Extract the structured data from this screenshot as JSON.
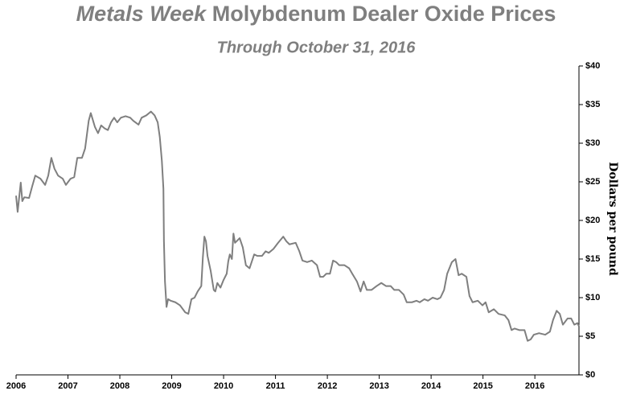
{
  "chart_data": {
    "type": "line",
    "title": {
      "publication": "Metals Week",
      "text": "Molybdenum Dealer Oxide Prices"
    },
    "subtitle": "Through October 31, 2016",
    "y_axis_label": "Dollars per pound",
    "color": "#7f7f7f",
    "xlim": [
      2006,
      2016.85
    ],
    "xticks": [
      2006,
      2007,
      2008,
      2009,
      2010,
      2011,
      2012,
      2013,
      2014,
      2015,
      2016
    ],
    "ylim": [
      0,
      40
    ],
    "yticks": [
      {
        "value": 0,
        "label": "$0"
      },
      {
        "value": 5,
        "label": "$5"
      },
      {
        "value": 10,
        "label": "$10"
      },
      {
        "value": 15,
        "label": "$15"
      },
      {
        "value": 20,
        "label": "$20"
      },
      {
        "value": 25,
        "label": "$25"
      },
      {
        "value": 30,
        "label": "$30"
      },
      {
        "value": 35,
        "label": "$35"
      },
      {
        "value": 40,
        "label": "$40"
      }
    ],
    "x": [
      2006.0,
      2006.03,
      2006.09,
      2006.12,
      2006.16,
      2006.25,
      2006.31,
      2006.37,
      2006.47,
      2006.56,
      2006.62,
      2006.68,
      2006.74,
      2006.81,
      2006.9,
      2006.96,
      2007.05,
      2007.12,
      2007.18,
      2007.27,
      2007.33,
      2007.4,
      2007.44,
      2007.52,
      2007.58,
      2007.64,
      2007.71,
      2007.77,
      2007.83,
      2007.89,
      2007.95,
      2008.02,
      2008.11,
      2008.2,
      2008.26,
      2008.36,
      2008.42,
      2008.51,
      2008.6,
      2008.67,
      2008.73,
      2008.77,
      2008.81,
      2008.84,
      2008.85,
      2008.87,
      2008.9,
      2008.93,
      2008.98,
      2009.07,
      2009.16,
      2009.26,
      2009.32,
      2009.38,
      2009.44,
      2009.5,
      2009.57,
      2009.6,
      2009.63,
      2009.66,
      2009.69,
      2009.75,
      2009.81,
      2009.84,
      2009.88,
      2009.94,
      2010.0,
      2010.06,
      2010.09,
      2010.12,
      2010.16,
      2010.19,
      2010.22,
      2010.25,
      2010.31,
      2010.37,
      2010.43,
      2010.5,
      2010.59,
      2010.65,
      2010.74,
      2010.81,
      2010.87,
      2010.96,
      2011.05,
      2011.15,
      2011.21,
      2011.27,
      2011.39,
      2011.46,
      2011.52,
      2011.61,
      2011.7,
      2011.8,
      2011.86,
      2011.92,
      2011.98,
      2012.05,
      2012.11,
      2012.17,
      2012.23,
      2012.33,
      2012.42,
      2012.48,
      2012.57,
      2012.64,
      2012.7,
      2012.76,
      2012.85,
      2012.95,
      2013.04,
      2013.13,
      2013.22,
      2013.29,
      2013.38,
      2013.47,
      2013.53,
      2013.63,
      2013.72,
      2013.78,
      2013.87,
      2013.94,
      2014.03,
      2014.12,
      2014.18,
      2014.25,
      2014.31,
      2014.4,
      2014.47,
      2014.53,
      2014.59,
      2014.68,
      2014.74,
      2014.8,
      2014.9,
      2014.99,
      2015.05,
      2015.11,
      2015.21,
      2015.3,
      2015.42,
      2015.49,
      2015.55,
      2015.61,
      2015.7,
      2015.8,
      2015.86,
      2015.92,
      2015.98,
      2016.08,
      2016.2,
      2016.29,
      2016.35,
      2016.42,
      2016.48,
      2016.54,
      2016.63,
      2016.7,
      2016.76,
      2016.82,
      2016.85
    ],
    "values": [
      23.2,
      21.1,
      24.9,
      22.5,
      23.0,
      22.9,
      24.4,
      25.8,
      25.4,
      24.6,
      25.8,
      28.1,
      26.7,
      25.8,
      25.4,
      24.6,
      25.4,
      25.6,
      28.1,
      28.1,
      29.3,
      32.9,
      33.9,
      32.1,
      31.3,
      32.3,
      31.9,
      31.7,
      32.7,
      33.3,
      32.7,
      33.3,
      33.5,
      33.3,
      32.9,
      32.4,
      33.3,
      33.6,
      34.1,
      33.6,
      32.7,
      30.8,
      27.7,
      24.1,
      17.3,
      12.1,
      8.8,
      9.8,
      9.6,
      9.4,
      9.0,
      8.1,
      7.9,
      9.8,
      10.0,
      10.8,
      11.5,
      15.2,
      17.9,
      17.3,
      15.4,
      13.5,
      11.0,
      10.8,
      11.9,
      11.3,
      12.3,
      13.1,
      14.7,
      15.6,
      15.0,
      18.3,
      17.1,
      17.3,
      17.7,
      16.5,
      14.2,
      13.8,
      15.6,
      15.4,
      15.4,
      16.0,
      15.8,
      16.3,
      17.1,
      17.9,
      17.3,
      16.9,
      17.1,
      16.0,
      14.8,
      14.6,
      14.8,
      14.2,
      12.7,
      12.7,
      13.1,
      13.1,
      14.8,
      14.6,
      14.2,
      14.2,
      13.8,
      13.1,
      12.1,
      10.8,
      12.1,
      11.0,
      11.0,
      11.5,
      11.9,
      11.5,
      11.5,
      11.0,
      11.0,
      10.4,
      9.4,
      9.4,
      9.6,
      9.4,
      9.8,
      9.6,
      10.0,
      9.8,
      10.0,
      11.0,
      13.1,
      14.6,
      15.0,
      12.9,
      13.1,
      12.7,
      10.2,
      9.4,
      9.6,
      9.0,
      9.4,
      8.1,
      8.5,
      7.9,
      7.7,
      7.1,
      5.8,
      6.0,
      5.8,
      5.8,
      4.4,
      4.6,
      5.2,
      5.4,
      5.2,
      5.6,
      7.1,
      8.3,
      7.9,
      6.5,
      7.3,
      7.3,
      6.5,
      6.7,
      6.3
    ]
  }
}
